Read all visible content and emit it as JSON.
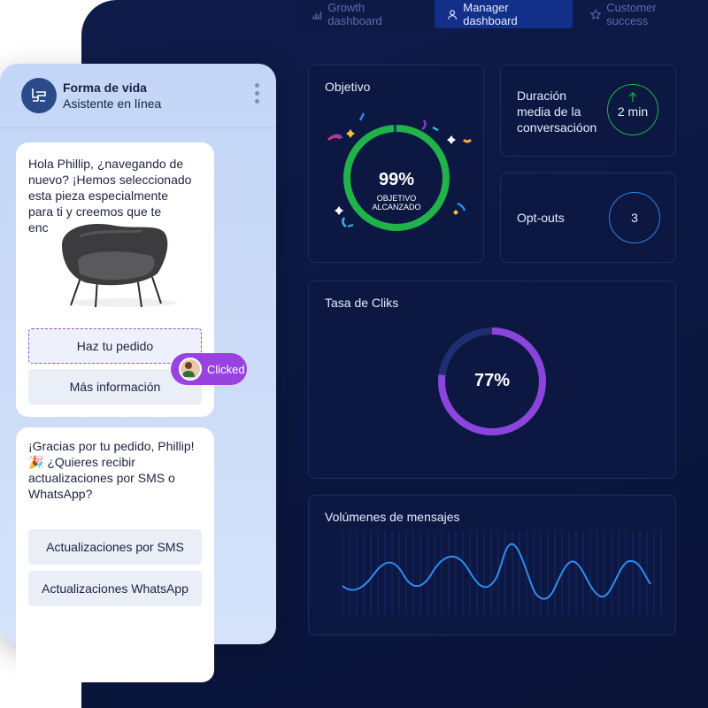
{
  "tabs": [
    {
      "label": "Growth dashboard",
      "icon": "bar-chart-icon"
    },
    {
      "label": "Manager dashboard",
      "icon": "user-icon"
    },
    {
      "label": "Customer success",
      "icon": "star-icon"
    }
  ],
  "objetivo": {
    "title": "Objetivo",
    "value": "99%",
    "caption_1": "OBJETIVO",
    "caption_2": "ALCANZADO",
    "progress": 0.99,
    "color": "#1fb34a"
  },
  "duracion": {
    "label_1": "Duración",
    "label_2": "media de la",
    "label_3": "conversacióon",
    "value": "2 min",
    "color": "#1fb34a"
  },
  "optouts": {
    "label": "Opt-outs",
    "value": "3",
    "color": "#2f7fe0"
  },
  "clicks": {
    "title": "Tasa de Cliks",
    "value": "77%",
    "progress": 0.77,
    "color": "#8b45dc"
  },
  "volumenes": {
    "title": "Volúmenes de mensajes",
    "color": "#2f8cf0"
  },
  "chat": {
    "brand": "Forma de vida",
    "status": "Asistente en línea",
    "message_1": [
      "Hola Phillip, ¿navegando de",
      "nuevo? ¡Hemos seleccionado",
      "esta pieza especialmente",
      "para ti y creemos que te",
      "enc"
    ],
    "button_order": "Haz tu pedido",
    "button_info": "Más información",
    "clicked_label": "Clicked",
    "message_2": [
      "¡Gracias por tu pedido, Phillip!",
      "🎉 ¿Quieres recibir",
      "actualizaciones por SMS o",
      "WhatsApp?"
    ],
    "button_sms": "Actualizaciones por SMS",
    "button_whatsapp": "Actualizaciones WhatsApp"
  }
}
